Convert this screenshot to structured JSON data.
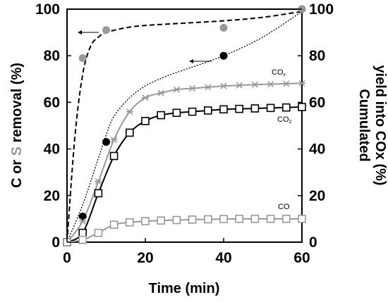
{
  "chart_data": {
    "type": "line",
    "xlabel": "Time (min)",
    "ylabel_left": {
      "part1": "C or ",
      "part2": "S",
      "part3": " removal (%)"
    },
    "ylabel_right": {
      "line1": "Cumulated",
      "line2": "yield into COx (%)"
    },
    "x_ticks": [
      "0",
      "20",
      "40",
      "60"
    ],
    "y_ticks": [
      "0",
      "20",
      "40",
      "60",
      "80",
      "100"
    ],
    "xlim": [
      0,
      60
    ],
    "ylim": [
      0,
      100
    ],
    "y2lim": [
      0,
      100
    ],
    "grid": false,
    "colors": {
      "black": "#000000",
      "gray": "#999999"
    },
    "series": [
      {
        "axis": "left",
        "style": "black-circles",
        "x": [
          0,
          4,
          10,
          40,
          60
        ],
        "y": [
          0,
          11,
          43,
          80,
          100
        ]
      },
      {
        "axis": "left",
        "style": "gray-circles",
        "x": [
          4,
          10,
          40,
          60
        ],
        "y": [
          79,
          91,
          92,
          100
        ]
      },
      {
        "axis": "left",
        "style": "black-dashed-curve",
        "x": [
          0,
          2,
          4,
          6,
          8,
          10,
          15,
          20,
          30,
          40,
          50,
          60
        ],
        "y": [
          0,
          45,
          72,
          84,
          88,
          90,
          92,
          93,
          94,
          95,
          96.5,
          99
        ]
      },
      {
        "axis": "left",
        "style": "black-dotted-curve",
        "x": [
          0,
          4,
          8,
          10,
          12,
          16,
          20,
          25,
          30,
          40,
          50,
          60
        ],
        "y": [
          0,
          16,
          36,
          46,
          54,
          62,
          67,
          71,
          74,
          80,
          88,
          99
        ]
      },
      {
        "axis": "right",
        "style": "gray-x-markers",
        "x": [
          0,
          4,
          8,
          12,
          16,
          20,
          24,
          28,
          32,
          36,
          40,
          44,
          48,
          52,
          56,
          60
        ],
        "y": [
          0,
          9,
          26,
          44,
          56,
          62,
          64,
          65.5,
          66,
          66.5,
          67,
          67.3,
          67.6,
          67.8,
          68,
          68.2
        ]
      },
      {
        "axis": "right",
        "style": "black-squares",
        "x": [
          0,
          4,
          8,
          12,
          16,
          20,
          24,
          28,
          32,
          36,
          40,
          44,
          48,
          52,
          56,
          60
        ],
        "y": [
          0,
          4,
          21,
          37,
          47,
          52,
          54.5,
          55.5,
          56,
          56.5,
          57,
          57.2,
          57.4,
          57.6,
          57.8,
          58
        ]
      },
      {
        "axis": "right",
        "style": "gray-squares",
        "x": [
          0,
          4,
          8,
          12,
          16,
          20,
          24,
          28,
          32,
          36,
          40,
          44,
          48,
          52,
          56,
          60
        ],
        "y": [
          0,
          1,
          4,
          7.5,
          8.5,
          9,
          9.3,
          9.5,
          9.7,
          9.8,
          9.9,
          10,
          10,
          10,
          10,
          10
        ]
      }
    ],
    "annotations": {
      "cox": "CO",
      "cox_sub": "x",
      "co2": "CO",
      "co2_sub": "2",
      "co": "CO"
    }
  }
}
